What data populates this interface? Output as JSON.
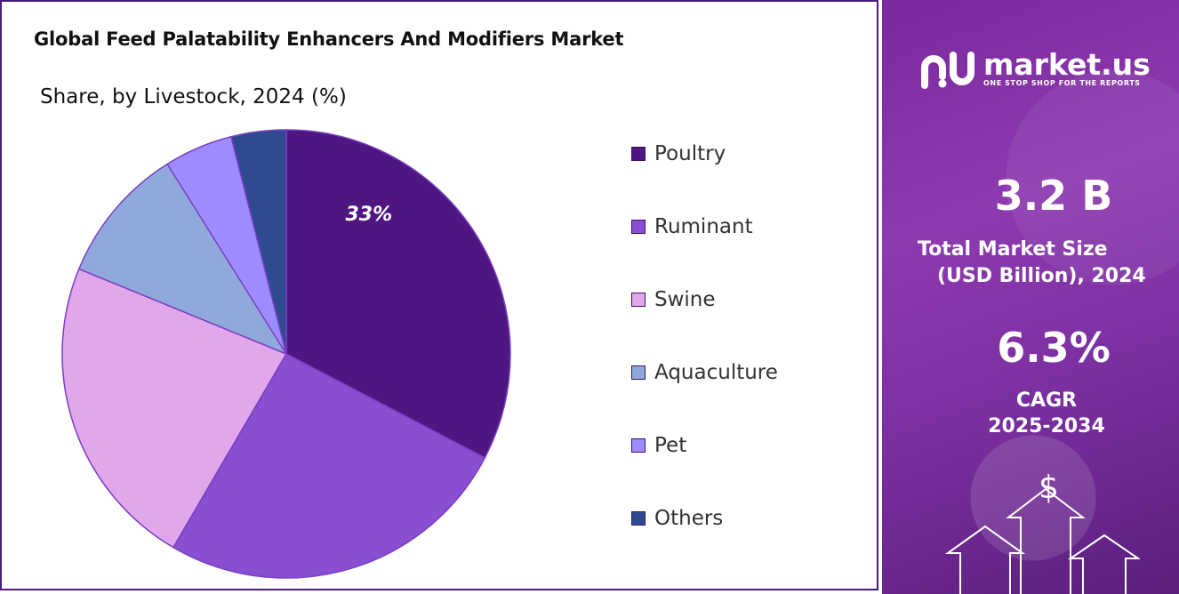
{
  "chart_data": {
    "type": "pie",
    "title": "Global Feed Palatability Enhancers And Modifiers Market",
    "subtitle": "Share, by Livestock, 2024 (%)",
    "categories": [
      "Poultry",
      "Ruminant",
      "Swine",
      "Aquaculture",
      "Pet",
      "Others"
    ],
    "values": [
      33,
      26,
      23,
      10,
      5,
      4
    ],
    "colors": [
      "#4f1682",
      "#8a4fd0",
      "#e1a7ea",
      "#8fa9db",
      "#9d8cff",
      "#2e4b92"
    ],
    "data_labels": [
      {
        "category": "Poultry",
        "text": "33%"
      }
    ],
    "start_angle_deg": 0,
    "direction": "clockwise",
    "legend_position": "right"
  },
  "promo": {
    "brand_name": "market.us",
    "tagline": "ONE STOP SHOP FOR THE REPORTS",
    "market_size_value": "3.2 B",
    "market_size_label_1": "Total Market Size",
    "market_size_label_2": "(USD Billion), 2024",
    "cagr_value": "6.3%",
    "cagr_label_1": "CAGR",
    "cagr_label_2": "2025-2034",
    "dollar_symbol": "$",
    "colors": {
      "panel": "#8a37ad",
      "text": "#ffffff"
    }
  }
}
